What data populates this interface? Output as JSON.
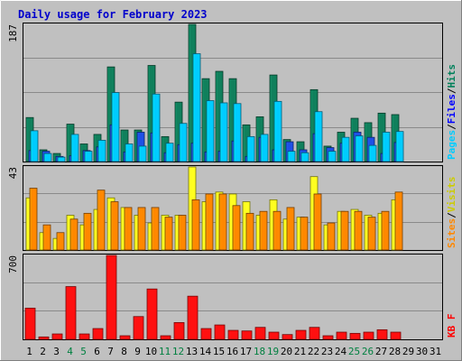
{
  "chart_data": {
    "type": "bar",
    "title": "Daily usage for February 2023",
    "days": [
      "1",
      "2",
      "3",
      "4",
      "5",
      "6",
      "7",
      "8",
      "9",
      "10",
      "11",
      "12",
      "13",
      "14",
      "15",
      "16",
      "17",
      "18",
      "19",
      "20",
      "21",
      "22",
      "23",
      "24",
      "25",
      "26",
      "27",
      "28",
      "29",
      "30",
      "31"
    ],
    "weekend_days": [
      "4",
      "5",
      "11",
      "12",
      "18",
      "19",
      "25",
      "26"
    ],
    "panels": [
      {
        "id": "hits-panel",
        "ymax_label": "187",
        "ymax": 187,
        "legend": [
          {
            "name": "Pages",
            "color": "#00ccff"
          },
          {
            "name": "/",
            "color": "#000000"
          },
          {
            "name": "Files",
            "color": "#0000ff"
          },
          {
            "name": "/",
            "color": "#000000"
          },
          {
            "name": "Hits",
            "color": "#00805a"
          }
        ],
        "series": [
          {
            "name": "Hits",
            "color": "#10805c",
            "values": [
              60,
              16,
              11,
              51,
              24,
              37,
              129,
              43,
              43,
              131,
              34,
              81,
              187,
              113,
              123,
              113,
              50,
              61,
              118,
              30,
              27,
              98,
              21,
              40,
              59,
              53,
              66,
              64
            ]
          },
          {
            "name": "Files",
            "color": "#1e50e6",
            "values": [
              15,
              14,
              7,
              8,
              15,
              20,
              50,
              13,
              40,
              39,
              12,
              23,
              25,
              13,
              14,
              28,
              7,
              33,
              16,
              27,
              16,
              38,
              19,
              25,
              40,
              33,
              11,
              26
            ]
          },
          {
            "name": "Pages",
            "color": "#00ccff",
            "values": [
              42,
              11,
              6,
              37,
              14,
              29,
              94,
              24,
              21,
              92,
              25,
              52,
              147,
              83,
              80,
              79,
              34,
              37,
              82,
              14,
              12,
              68,
              14,
              33,
              35,
              22,
              40,
              41
            ]
          }
        ]
      },
      {
        "id": "visits-panel",
        "ymax_label": "43",
        "ymax": 43,
        "legend": [
          {
            "name": "Sites",
            "color": "#ff8800"
          },
          {
            "name": "/",
            "color": "#000000"
          },
          {
            "name": "Visits",
            "color": "#cccc00"
          }
        ],
        "series": [
          {
            "name": "Visits",
            "color": "#ffff20",
            "values": [
              27,
              9,
              6,
              18,
              13,
              21,
              27,
              22,
              18,
              14,
              18,
              18,
              43,
              25,
              30,
              29,
              25,
              18,
              26,
              16,
              17,
              38,
              13,
              20,
              21,
              18,
              19,
              26
            ]
          },
          {
            "name": "Sites",
            "color": "#ff8800",
            "values": [
              32,
              13,
              9,
              16,
              19,
              31,
              25,
              22,
              22,
              22,
              17,
              18,
              26,
              29,
              29,
              23,
              19,
              20,
              20,
              22,
              17,
              29,
              14,
              20,
              20,
              17,
              20,
              30
            ]
          }
        ]
      },
      {
        "id": "kb-panel",
        "ymax_label": "700",
        "ymax": 700,
        "legend": [
          {
            "name": "KB F",
            "color": "#ff0000"
          }
        ],
        "series": [
          {
            "name": "KB F",
            "color": "#ff1010",
            "values": [
              260,
              20,
              45,
              440,
              45,
              90,
              700,
              30,
              190,
              420,
              30,
              140,
              360,
              90,
              120,
              75,
              70,
              100,
              60,
              40,
              75,
              100,
              30,
              60,
              50,
              60,
              80,
              60
            ]
          }
        ]
      }
    ]
  }
}
